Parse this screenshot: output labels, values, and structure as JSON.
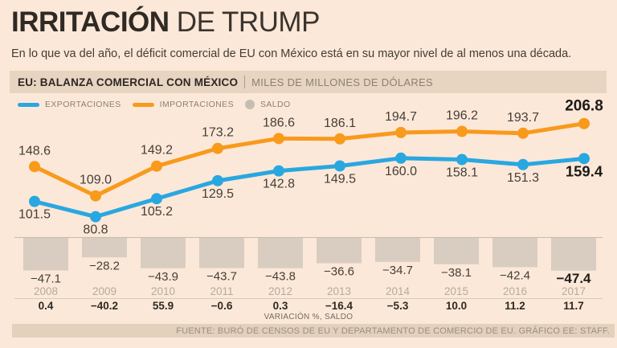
{
  "title": {
    "bold": "IRRITACIÓN",
    "rest": " DE TRUMP"
  },
  "subtitle": "En lo que va del año, el déficit comercial de EU con México está en su mayor nivel de al menos una década.",
  "header": {
    "label": "EU: BALANZA COMERCIAL CON MÉXICO",
    "units": "MILES DE MILLONES DE DÓLARES"
  },
  "legend": [
    {
      "label": "EXPORTACIONES",
      "color": "#29a7e1",
      "shape": "line"
    },
    {
      "label": "IMPORTACIONES",
      "color": "#f89a1c",
      "shape": "line"
    },
    {
      "label": "SALDO",
      "color": "#c7beb2",
      "shape": "dot"
    }
  ],
  "chart_data": {
    "type": "line",
    "title": "EU: BALANZA COMERCIAL CON MÉXICO",
    "ylabel": "MILES DE MILLONES DE DÓLARES",
    "legend_position": "top-left",
    "grid": false,
    "categories": [
      "2008",
      "2009",
      "2010",
      "2011",
      "2012",
      "2013",
      "2014",
      "2015",
      "2016",
      "2017"
    ],
    "series": [
      {
        "name": "EXPORTACIONES",
        "type": "line",
        "color": "#29a7e1",
        "values": [
          101.5,
          80.8,
          105.2,
          129.5,
          142.8,
          149.5,
          160.0,
          158.1,
          151.3,
          159.4
        ]
      },
      {
        "name": "IMPORTACIONES",
        "type": "line",
        "color": "#f89a1c",
        "values": [
          148.6,
          109.0,
          149.2,
          173.2,
          186.6,
          186.1,
          194.7,
          196.2,
          193.7,
          206.8
        ]
      },
      {
        "name": "SALDO",
        "type": "bar",
        "color": "#d8cdc0",
        "values": [
          -47.1,
          -28.2,
          -43.9,
          -43.7,
          -43.8,
          -36.6,
          -34.7,
          -38.1,
          -42.4,
          -47.4
        ]
      },
      {
        "name": "VARIACIÓN %, SALDO",
        "type": "table-row",
        "values": [
          0.4,
          -40.2,
          55.9,
          -0.6,
          0.3,
          -16.4,
          -5.3,
          10.0,
          11.2,
          11.7
        ]
      }
    ]
  },
  "footer": {
    "variation_caption": "VARIACIÓN %, SALDO",
    "source": "FUENTE: BURÓ DE CENSOS DE EU Y DEPARTAMENTO DE COMERCIO DE EU. GRÁFICO EE: STAFF."
  },
  "colors": {
    "background": "#fce8d8",
    "header_bar": "#e7d4c1",
    "source_bar": "#e3d0bd",
    "export_blue": "#29a7e1",
    "import_orange": "#f89a1c",
    "saldo_bar": "#d8cdc0",
    "dark_text": "#2f2a24",
    "label_text": "#453e37",
    "year_text": "#b6aa9b"
  }
}
